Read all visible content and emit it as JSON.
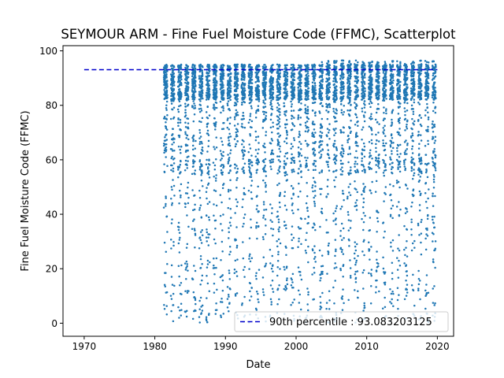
{
  "chart_data": {
    "type": "scatter",
    "title": "SEYMOUR ARM - Fine Fuel Moisture Code (FFMC), Scatterplot",
    "xlabel": "Date",
    "ylabel": "Fine Fuel Moisture Code (FFMC)",
    "xlim": [
      1967,
      2022.3
    ],
    "ylim": [
      -4.8,
      101.9
    ],
    "x_ticks": [
      1970,
      1980,
      1990,
      2000,
      2010,
      2020
    ],
    "y_ticks": [
      0,
      20,
      40,
      60,
      80,
      100
    ],
    "grid": false,
    "legend_position": "lower right",
    "series": [
      {
        "type": "scatter",
        "color": "#1f77b4",
        "description": "daily FFMC, fire seasons 1981-2019",
        "x_range": [
          1981.3,
          2019.4
        ],
        "season_years": [
          1981,
          1982,
          1983,
          1984,
          1985,
          1986,
          1987,
          1988,
          1989,
          1990,
          1991,
          1992,
          1993,
          1994,
          1995,
          1996,
          1997,
          1998,
          1999,
          2000,
          2001,
          2002,
          2003,
          2004,
          2005,
          2006,
          2007,
          2008,
          2009,
          2010,
          2011,
          2012,
          2013,
          2014,
          2015,
          2016,
          2017,
          2018,
          2019
        ],
        "y_range": [
          0,
          97.5
        ],
        "y_peak": 97.5
      },
      {
        "name": "90th percentile : 93.083203125",
        "type": "hline",
        "y": 93.083203125,
        "x_range": [
          1970,
          2020
        ],
        "color": "#0000cc",
        "style": "dashed"
      }
    ]
  }
}
